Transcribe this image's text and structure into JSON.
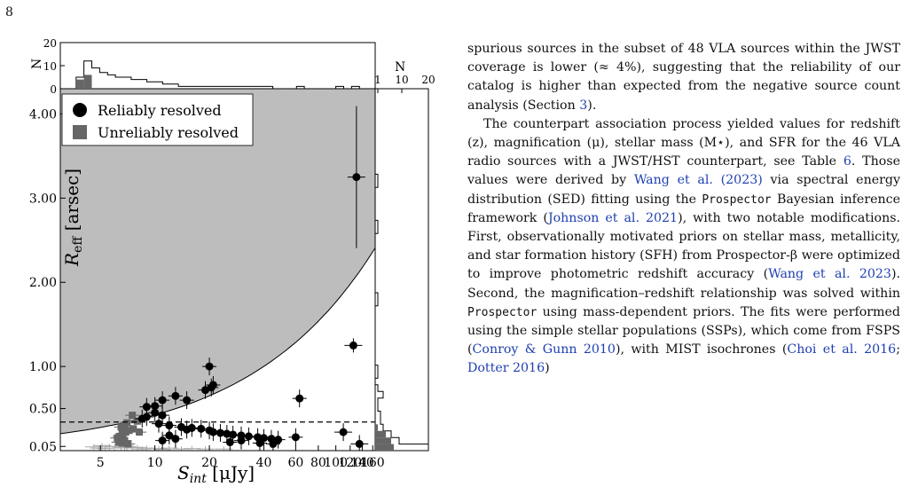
{
  "page": {
    "number": "8"
  },
  "colors": {
    "resolved": "#000000",
    "unreliable": "#666666",
    "gray": "#aaaaaa",
    "shade": "#bdbdbd",
    "link": "#1f3fb0"
  },
  "chart_data": {
    "type": "scatter",
    "xlabel": "S_int [μJy]",
    "ylabel": "R_eff [arsec]",
    "x_ticks": [
      "5",
      "10",
      "20",
      "40",
      "60",
      "80",
      "100",
      "120",
      "140",
      "160"
    ],
    "x_tick_values": [
      5,
      10,
      20,
      40,
      60,
      80,
      100,
      120,
      140,
      160
    ],
    "y_ticks": [
      "0.05",
      "0.50",
      "1.00",
      "2.00",
      "3.00",
      "4.00"
    ],
    "y_tick_values": [
      0.05,
      0.5,
      1.0,
      2.0,
      3.0,
      4.0
    ],
    "xlim": [
      3,
      165
    ],
    "ylim": [
      0,
      4.3
    ],
    "legend": {
      "position": "top-left",
      "entries": [
        "Reliably resolved",
        "Unreliably resolved"
      ]
    },
    "threshold_y": 0.34,
    "series": [
      {
        "name": "Reliably resolved",
        "points": [
          [
            130,
            3.25
          ],
          [
            125,
            1.25
          ],
          [
            63,
            0.62
          ],
          [
            110,
            0.22
          ],
          [
            135,
            0.08
          ],
          [
            20,
            1.0
          ],
          [
            21,
            0.78
          ],
          [
            20.5,
            0.75
          ],
          [
            19,
            0.72
          ],
          [
            13,
            0.65
          ],
          [
            11,
            0.6
          ],
          [
            10,
            0.53
          ],
          [
            15,
            0.6
          ],
          [
            9,
            0.52
          ],
          [
            10,
            0.45
          ],
          [
            11,
            0.42
          ],
          [
            9,
            0.4
          ],
          [
            8.5,
            0.38
          ],
          [
            10.5,
            0.32
          ],
          [
            12,
            0.3
          ],
          [
            14,
            0.28
          ],
          [
            16,
            0.27
          ],
          [
            15,
            0.25
          ],
          [
            18,
            0.26
          ],
          [
            20,
            0.24
          ],
          [
            21,
            0.22
          ],
          [
            23,
            0.21
          ],
          [
            25,
            0.2
          ],
          [
            27,
            0.19
          ],
          [
            30,
            0.18
          ],
          [
            33,
            0.17
          ],
          [
            37,
            0.16
          ],
          [
            40,
            0.15
          ],
          [
            44,
            0.14
          ],
          [
            48,
            0.13
          ],
          [
            12,
            0.18
          ],
          [
            13,
            0.14
          ],
          [
            11,
            0.12
          ],
          [
            26,
            0.1
          ],
          [
            30,
            0.12
          ],
          [
            38,
            0.09
          ],
          [
            45,
            0.08
          ],
          [
            60,
            0.16
          ]
        ]
      },
      {
        "name": "Unreliably resolved",
        "points": [
          [
            7.5,
            0.42
          ],
          [
            8,
            0.35
          ],
          [
            7,
            0.33
          ],
          [
            6.8,
            0.3
          ],
          [
            6.5,
            0.28
          ],
          [
            7.2,
            0.24
          ],
          [
            6.9,
            0.22
          ],
          [
            6.6,
            0.2
          ],
          [
            6.4,
            0.17
          ],
          [
            6.2,
            0.15
          ],
          [
            6.8,
            0.12
          ],
          [
            6.3,
            0.1
          ],
          [
            6.6,
            0.09
          ],
          [
            7.1,
            0.08
          ],
          [
            7.6,
            0.26
          ],
          [
            8.2,
            0.22
          ]
        ]
      },
      {
        "name": "",
        "points": [
          [
            5.1,
            0.06
          ],
          [
            5.6,
            0.05
          ],
          [
            6.0,
            0.045
          ],
          [
            6.5,
            0.04
          ],
          [
            7.0,
            0.05
          ],
          [
            7.5,
            0.04
          ],
          [
            8.0,
            0.035
          ],
          [
            4.6,
            0.045
          ],
          [
            4.9,
            0.03
          ],
          [
            5.3,
            0.025
          ],
          [
            6.8,
            0.03
          ],
          [
            9.0,
            0.03
          ],
          [
            10.5,
            0.025
          ],
          [
            12.0,
            0.03
          ],
          [
            14.0,
            0.02
          ],
          [
            16.0,
            0.025
          ],
          [
            19.0,
            0.02
          ],
          [
            24.0,
            0.02
          ],
          [
            8.5,
            0.02
          ],
          [
            11.0,
            0.015
          ]
        ]
      }
    ],
    "top_histogram": {
      "ylabel": "N",
      "ticks": [
        "0",
        "10",
        "20"
      ],
      "outline_counts": [
        0,
        0,
        5,
        12,
        9,
        7,
        6,
        5,
        5,
        4,
        4,
        3,
        3,
        2,
        2,
        1,
        1,
        1,
        1,
        1,
        1,
        1,
        1,
        1,
        1,
        1,
        1,
        0,
        0,
        0,
        1,
        0,
        0,
        0,
        0,
        1,
        0,
        1,
        0,
        0
      ],
      "filled_counts": [
        0,
        0,
        4,
        6,
        0,
        0,
        0,
        0,
        0,
        0,
        0,
        0,
        0,
        0,
        0,
        0,
        0,
        0,
        0,
        0,
        0,
        0,
        0,
        0,
        0,
        0,
        0,
        0,
        0,
        0,
        0,
        0,
        0,
        0,
        0,
        0,
        0,
        0,
        0,
        0
      ]
    },
    "right_histogram": {
      "xlabel": "N",
      "ticks": [
        "1",
        "10",
        "20"
      ],
      "outline_counts": [
        20,
        9,
        6,
        3,
        2,
        2,
        1,
        1,
        3,
        1,
        0,
        1,
        1,
        0,
        0,
        0,
        0,
        0,
        0,
        0,
        0,
        0,
        1,
        1,
        0,
        0,
        0,
        0,
        0,
        0,
        0,
        0,
        0,
        1,
        1,
        0,
        0,
        0,
        0,
        0,
        1,
        1,
        0,
        0,
        0,
        0,
        0,
        0,
        0,
        0,
        0,
        0,
        0,
        0,
        0
      ],
      "filled_counts": [
        7,
        6,
        4,
        1,
        0,
        0,
        0,
        0,
        0,
        0,
        0,
        0,
        0,
        0,
        0,
        0,
        0,
        0,
        0,
        0,
        0,
        0,
        0,
        0,
        0,
        0,
        0,
        0,
        0,
        0,
        0,
        0,
        0,
        0,
        0,
        0,
        0,
        0,
        0,
        0,
        0,
        0,
        0,
        0,
        0,
        0,
        0,
        0,
        0,
        0,
        0,
        0,
        0,
        0,
        0
      ]
    }
  },
  "text": {
    "p1": "spurious sources in the subset of 48 VLA sources within the JWST coverage is lower (≈ 4%), suggesting that the reliability of our catalog is higher than expected from the negative source count analysis (Section ",
    "p1_ref": "3",
    "p1_end": ").",
    "p2_a": "The counterpart association process yielded values for redshift (z), magnification (μ), stellar mass (M⋆), and SFR for the 46 VLA radio sources with a JWST/HST counterpart, see Table ",
    "p2_ref_table": "6",
    "p2_b": ". Those values were derived by ",
    "p2_ref_wang": "Wang et al. (2023)",
    "p2_c": " via spectral energy distribution (SED) fitting using the ",
    "p2_code1": "Prospector",
    "p2_d": " Bayesian inference framework (",
    "p2_ref_johnson": "Johnson et al. 2021",
    "p2_e": "), with two notable modifications. First, observationally motivated priors on stellar mass, metallicity, and star formation history (SFH) from Prospector-β were optimized to improve photometric redshift accuracy (",
    "p2_ref_wang2": "Wang et al. 2023",
    "p2_f": "). Second, the magnification–redshift relationship was solved within ",
    "p2_code2": "Prospector",
    "p2_g": " using mass-dependent priors. The fits were performed using the simple stellar populations (SSPs), which come from FSPS (",
    "p2_ref_conroy": "Conroy & Gunn 2010",
    "p2_h": "), with MIST isochrones (",
    "p2_ref_choi": "Choi et al. 2016",
    "p2_sep": "; ",
    "p2_ref_dotter": "Dotter 2016",
    "p2_i": ")"
  }
}
